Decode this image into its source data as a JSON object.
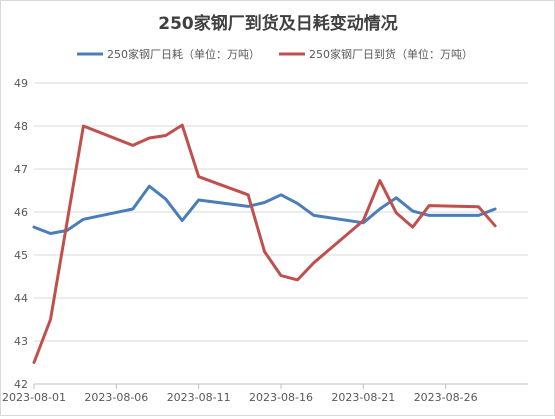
{
  "chart_data": {
    "type": "line",
    "title": "250家钢厂到货及日耗变动情况",
    "xlabel": "",
    "ylabel": "",
    "ylim": [
      42,
      49
    ],
    "yticks": [
      42,
      43,
      44,
      45,
      46,
      47,
      48,
      49
    ],
    "xticks": [
      "2023-08-01",
      "2023-08-06",
      "2023-08-11",
      "2023-08-16",
      "2023-08-21",
      "2023-08-26"
    ],
    "xlim_days": [
      1,
      31
    ],
    "grid": true,
    "legend_position": "top-center",
    "series": [
      {
        "name": "250家钢厂日耗（单位：万吨）",
        "color": "#4a7ebb",
        "points": [
          {
            "x": "2023-08-01",
            "y": 45.65
          },
          {
            "x": "2023-08-02",
            "y": 45.5
          },
          {
            "x": "2023-08-03",
            "y": 45.57
          },
          {
            "x": "2023-08-04",
            "y": 45.83
          },
          {
            "x": "2023-08-07",
            "y": 46.07
          },
          {
            "x": "2023-08-08",
            "y": 46.6
          },
          {
            "x": "2023-08-09",
            "y": 46.3
          },
          {
            "x": "2023-08-10",
            "y": 45.8
          },
          {
            "x": "2023-08-11",
            "y": 46.28
          },
          {
            "x": "2023-08-14",
            "y": 46.13
          },
          {
            "x": "2023-08-15",
            "y": 46.22
          },
          {
            "x": "2023-08-16",
            "y": 46.4
          },
          {
            "x": "2023-08-17",
            "y": 46.2
          },
          {
            "x": "2023-08-18",
            "y": 45.92
          },
          {
            "x": "2023-08-21",
            "y": 45.75
          },
          {
            "x": "2023-08-22",
            "y": 46.07
          },
          {
            "x": "2023-08-23",
            "y": 46.33
          },
          {
            "x": "2023-08-24",
            "y": 46.02
          },
          {
            "x": "2023-08-25",
            "y": 45.92
          },
          {
            "x": "2023-08-28",
            "y": 45.92
          },
          {
            "x": "2023-08-29",
            "y": 46.07
          }
        ]
      },
      {
        "name": "250家钢厂日到货（单位：万吨）",
        "color": "#c0504d",
        "points": [
          {
            "x": "2023-08-01",
            "y": 42.5
          },
          {
            "x": "2023-08-02",
            "y": 43.5
          },
          {
            "x": "2023-08-04",
            "y": 48.0
          },
          {
            "x": "2023-08-07",
            "y": 47.55
          },
          {
            "x": "2023-08-08",
            "y": 47.72
          },
          {
            "x": "2023-08-09",
            "y": 47.78
          },
          {
            "x": "2023-08-10",
            "y": 48.02
          },
          {
            "x": "2023-08-11",
            "y": 46.82
          },
          {
            "x": "2023-08-14",
            "y": 46.4
          },
          {
            "x": "2023-08-15",
            "y": 45.08
          },
          {
            "x": "2023-08-16",
            "y": 44.52
          },
          {
            "x": "2023-08-17",
            "y": 44.42
          },
          {
            "x": "2023-08-18",
            "y": 44.82
          },
          {
            "x": "2023-08-21",
            "y": 45.8
          },
          {
            "x": "2023-08-22",
            "y": 46.73
          },
          {
            "x": "2023-08-23",
            "y": 45.98
          },
          {
            "x": "2023-08-24",
            "y": 45.65
          },
          {
            "x": "2023-08-25",
            "y": 46.15
          },
          {
            "x": "2023-08-28",
            "y": 46.12
          },
          {
            "x": "2023-08-29",
            "y": 45.68
          }
        ]
      }
    ]
  }
}
